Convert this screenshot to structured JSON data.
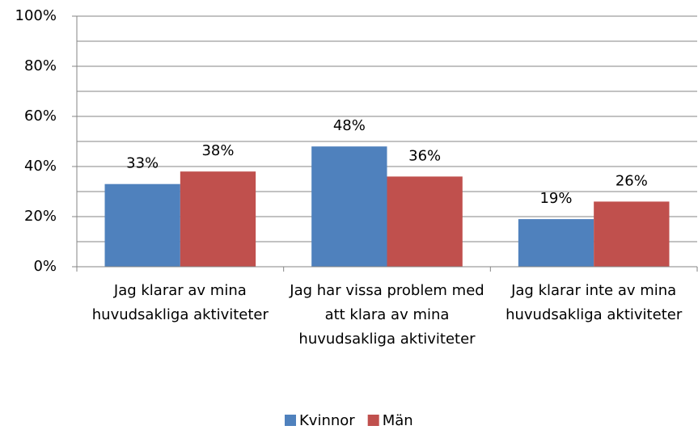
{
  "chart_data": {
    "type": "bar",
    "categories": [
      "Jag klarar av mina huvudsakliga aktiviteter",
      "Jag har vissa problem med att klara av mina huvudsakliga aktiviteter",
      "Jag klarar inte av mina huvudsakliga aktiviteter"
    ],
    "series": [
      {
        "name": "Kvinnor",
        "color": "#4f81bd",
        "values": [
          33,
          48,
          19
        ],
        "value_labels": [
          "33%",
          "48%",
          "19%"
        ]
      },
      {
        "name": "Män",
        "color": "#c0504d",
        "values": [
          38,
          36,
          26
        ],
        "value_labels": [
          "38%",
          "36%",
          "26%"
        ]
      }
    ],
    "ylim": [
      0,
      100
    ],
    "yticks": [
      {
        "value": 0,
        "label": "0%"
      },
      {
        "value": 20,
        "label": "20%"
      },
      {
        "value": 40,
        "label": "40%"
      },
      {
        "value": 60,
        "label": "60%"
      },
      {
        "value": 80,
        "label": "80%"
      },
      {
        "value": 100,
        "label": "100%"
      }
    ],
    "minor_grid": [
      10,
      30,
      50,
      70,
      90
    ],
    "grid": true,
    "legend": "bottom"
  }
}
